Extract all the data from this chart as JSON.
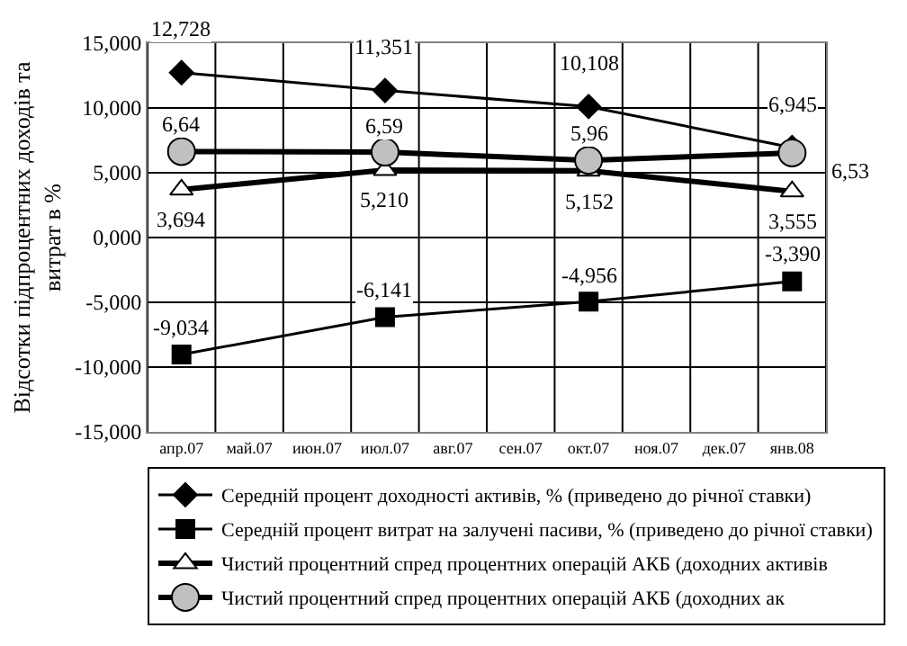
{
  "chart_data": {
    "type": "line",
    "ylabel": "Відсотки підпроцентних доходів та\nвитрат в %",
    "categories": [
      "апр.07",
      "май.07",
      "июн.07",
      "июл.07",
      "авг.07",
      "сен.07",
      "окт.07",
      "ноя.07",
      "дек.07",
      "янв.08"
    ],
    "ylim": [
      -15,
      15
    ],
    "yticks": [
      {
        "value": -15,
        "label": "-15,000"
      },
      {
        "value": -10,
        "label": "-10,000"
      },
      {
        "value": -5,
        "label": "-5,000"
      },
      {
        "value": 0,
        "label": "0,000"
      },
      {
        "value": 5,
        "label": "5,000"
      },
      {
        "value": 10,
        "label": "10,000"
      },
      {
        "value": 15,
        "label": "15,000"
      }
    ],
    "grid": true,
    "legend": "bottom",
    "series": [
      {
        "name": "Середній процент доходності активів, % (приведено до річної ставки)",
        "color": "#000000",
        "marker": "diamond",
        "values": [
          12.728,
          null,
          null,
          11.351,
          null,
          null,
          10.108,
          null,
          null,
          6.945
        ],
        "value_labels": [
          "12,728",
          null,
          null,
          "11,351",
          null,
          null,
          "10,108",
          null,
          null,
          "6,945"
        ]
      },
      {
        "name": "Середній процент витрат на залучені пасиви, % (приведено до річної ставки)",
        "color": "#000000",
        "marker": "square",
        "values": [
          -9.034,
          null,
          null,
          -6.141,
          null,
          null,
          -4.956,
          null,
          null,
          -3.39
        ],
        "value_labels": [
          "-9,034",
          null,
          null,
          "-6,141",
          null,
          null,
          "-4,956",
          null,
          null,
          "-3,390"
        ]
      },
      {
        "name": "Чистий процентний спред процентних операцій АКБ (доходних активів",
        "color": "#ffffff",
        "marker": "triangle",
        "values": [
          3.694,
          null,
          null,
          5.21,
          null,
          null,
          5.152,
          null,
          null,
          3.555
        ],
        "value_labels": [
          "3,694",
          null,
          null,
          "5,210",
          null,
          null,
          "5,152",
          null,
          null,
          "3,555"
        ]
      },
      {
        "name": "Чистий процентний спред процентних операцій АКБ (доходних ак",
        "color": "#c0c0c0",
        "marker": "circle",
        "values": [
          6.64,
          null,
          null,
          6.59,
          null,
          null,
          5.96,
          null,
          null,
          6.53
        ],
        "value_labels": [
          "6,64",
          null,
          null,
          "6,59",
          null,
          null,
          "5,96",
          null,
          null,
          "6,53"
        ]
      }
    ]
  }
}
